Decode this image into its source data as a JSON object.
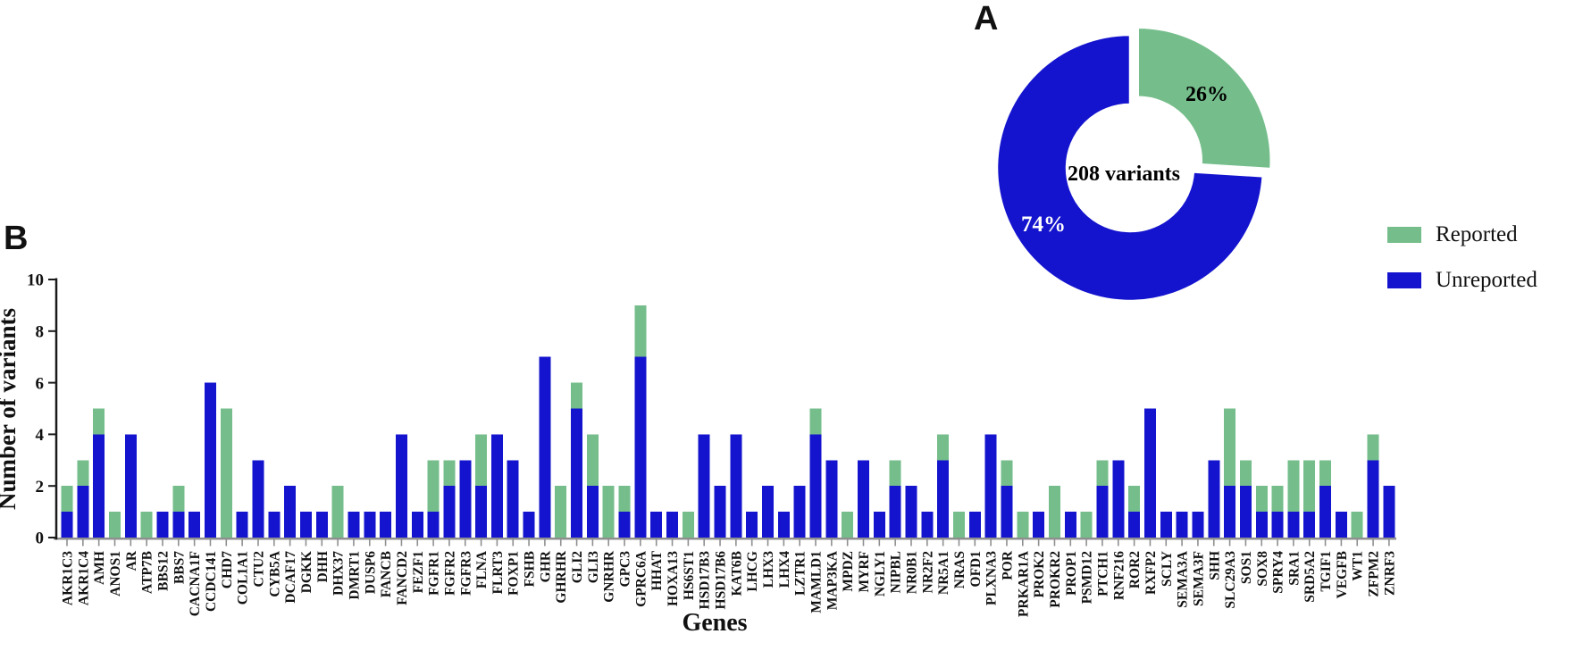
{
  "figure": {
    "panel_a_label": "A",
    "panel_b_label": "B"
  },
  "legend": {
    "items": [
      {
        "label": "Reported",
        "color": "#75BE8B"
      },
      {
        "label": "Unreported",
        "color": "#1414CE"
      }
    ]
  },
  "chart_data": [
    {
      "type": "pie",
      "subtype": "donut",
      "panel": "A",
      "center_label": "208 variants",
      "legend_position": "right",
      "slices": [
        {
          "name": "Reported",
          "value": 26,
          "label": "26%",
          "color": "#75BE8B",
          "exploded": true
        },
        {
          "name": "Unreported",
          "value": 74,
          "label": "74%",
          "color": "#1414CE",
          "exploded": false
        }
      ]
    },
    {
      "type": "bar",
      "subtype": "stacked",
      "panel": "B",
      "xlabel": "Genes",
      "ylabel": "Number of variants",
      "ylim": [
        0,
        10
      ],
      "yticks": [
        0,
        2,
        4,
        6,
        8,
        10
      ],
      "grid": false,
      "categories": [
        "AKR1C3",
        "AKR1C4",
        "AMH",
        "ANOS1",
        "AR",
        "ATP7B",
        "BBS12",
        "BBS7",
        "CACNA1F",
        "CCDC141",
        "CHD7",
        "COL1A1",
        "CTU2",
        "CYB5A",
        "DCAF17",
        "DGKK",
        "DHH",
        "DHX37",
        "DMRT1",
        "DUSP6",
        "FANCB",
        "FANCD2",
        "FEZF1",
        "FGFR1",
        "FGFR2",
        "FGFR3",
        "FLNA",
        "FLRT3",
        "FOXP1",
        "FSHB",
        "GHR",
        "GHRHR",
        "GLI2",
        "GLI3",
        "GNRHR",
        "GPC3",
        "GPRC6A",
        "HHAT",
        "HOXA13",
        "HS6ST1",
        "HSD17B3",
        "HSD17B6",
        "KAT6B",
        "LHCG",
        "LHX3",
        "LHX4",
        "LZTR1",
        "MAMLD1",
        "MAP3KA",
        "MPDZ",
        "MYRF",
        "NGLY1",
        "NIPBL",
        "NR0B1",
        "NR2F2",
        "NR5A1",
        "NRAS",
        "OFD1",
        "PLXNA3",
        "POR",
        "PRKAR1A",
        "PROK2",
        "PROKR2",
        "PROP1",
        "PSMD12",
        "PTCH1",
        "RNF216",
        "ROR2",
        "RXFP2",
        "SCLY",
        "SEMA3A",
        "SEMA3F",
        "SHH",
        "SLC29A3",
        "SOS1",
        "SOX8",
        "SPRY4",
        "SRA1",
        "SRD5A2",
        "TGIF1",
        "VEGFB",
        "WT1",
        "ZFPM2",
        "ZNRF3"
      ],
      "series": [
        {
          "name": "Unreported",
          "color": "#1414CE",
          "values": [
            1,
            2,
            4,
            0,
            4,
            0,
            1,
            1,
            1,
            6,
            0,
            1,
            3,
            1,
            2,
            1,
            1,
            0,
            1,
            1,
            1,
            4,
            1,
            1,
            2,
            3,
            2,
            4,
            3,
            1,
            7,
            0,
            5,
            2,
            0,
            1,
            7,
            1,
            1,
            0,
            4,
            2,
            4,
            1,
            2,
            1,
            2,
            4,
            3,
            0,
            3,
            1,
            2,
            2,
            1,
            3,
            0,
            1,
            4,
            2,
            0,
            1,
            0,
            1,
            0,
            2,
            3,
            1,
            5,
            1,
            1,
            1,
            3,
            2,
            2,
            1,
            1,
            1,
            1,
            2,
            1,
            0,
            3,
            2
          ]
        },
        {
          "name": "Reported",
          "color": "#75BE8B",
          "values": [
            1,
            1,
            1,
            1,
            0,
            1,
            0,
            1,
            0,
            0,
            5,
            0,
            0,
            0,
            0,
            0,
            0,
            2,
            0,
            0,
            0,
            0,
            0,
            2,
            1,
            0,
            2,
            0,
            0,
            0,
            0,
            2,
            1,
            2,
            2,
            1,
            2,
            0,
            0,
            1,
            0,
            0,
            0,
            0,
            0,
            0,
            0,
            1,
            0,
            1,
            0,
            0,
            1,
            0,
            0,
            1,
            1,
            0,
            0,
            1,
            1,
            0,
            2,
            0,
            1,
            1,
            0,
            1,
            0,
            0,
            0,
            0,
            0,
            3,
            1,
            1,
            1,
            2,
            2,
            1,
            0,
            1,
            1,
            0
          ]
        }
      ]
    }
  ]
}
